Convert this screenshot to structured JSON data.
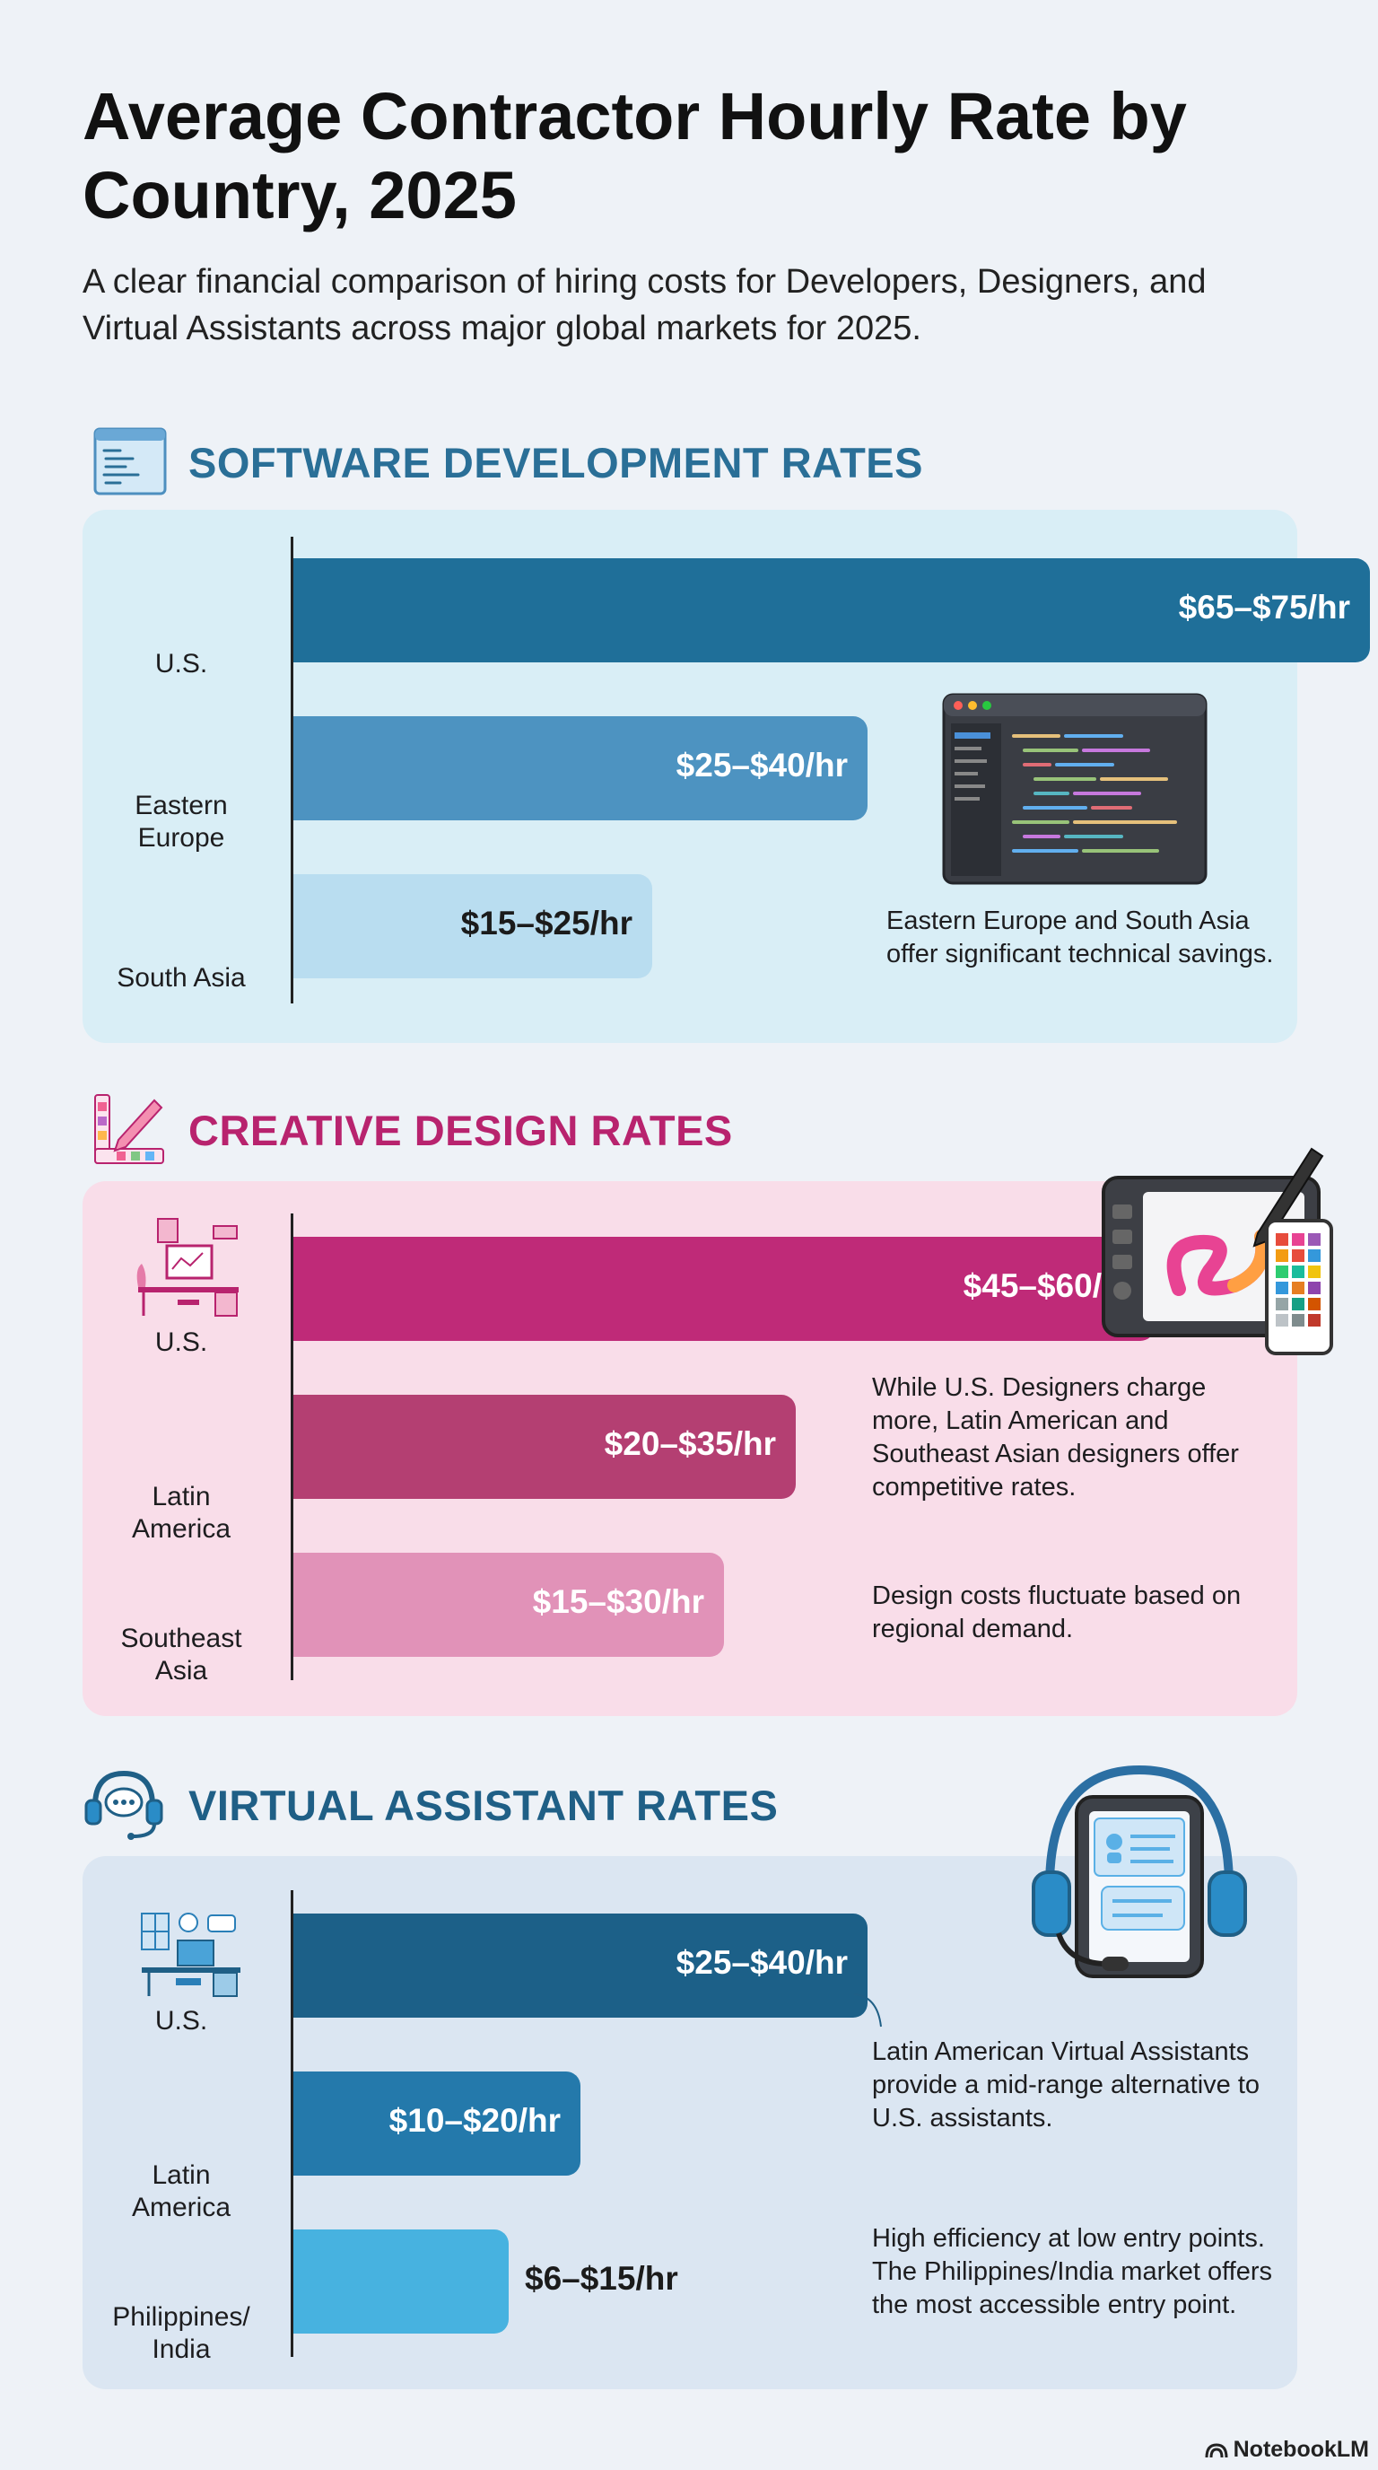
{
  "title": "Average Contractor Hourly Rate by Country, 2025",
  "subtitle": "A clear financial comparison of hiring costs for Developers, Designers, and Virtual Assistants across major global markets for 2025.",
  "brand": "NotebookLM",
  "icons": {
    "software": "code-window-icon",
    "design": "palette-pencil-icon",
    "va": "headset-chat-icon",
    "illustration_software": "code-editor-icon",
    "illustration_design": "drawing-tablet-icon",
    "illustration_va": "headset-tablet-icon"
  },
  "colors": {
    "software_title": "#2a6f97",
    "design_title": "#b8236e",
    "va_title": "#1f5f86"
  },
  "chart_data": [
    {
      "type": "bar",
      "title": "SOFTWARE DEVELOPMENT RATES",
      "orientation": "horizontal",
      "categories": [
        "U.S.",
        "Eastern Europe",
        "South Asia"
      ],
      "ranges": [
        [
          65,
          75
        ],
        [
          25,
          40
        ],
        [
          15,
          25
        ]
      ],
      "values": [
        75,
        40,
        25
      ],
      "value_labels": [
        "$65–$75/hr",
        "$25–$40/hr",
        "$15–$25/hr"
      ],
      "colors": [
        "#1f6f99",
        "#4d93c1",
        "#b9ddf0"
      ],
      "annotations": [
        "Eastern Europe and South Asia offer significant technical savings."
      ],
      "xlim": [
        0,
        80
      ]
    },
    {
      "type": "bar",
      "title": "CREATIVE DESIGN RATES",
      "orientation": "horizontal",
      "categories": [
        "U.S.",
        "Latin America",
        "Southeast Asia"
      ],
      "ranges": [
        [
          45,
          60
        ],
        [
          20,
          35
        ],
        [
          15,
          30
        ]
      ],
      "values": [
        60,
        35,
        30
      ],
      "value_labels": [
        "$45–$60/hr",
        "$20–$35/hr",
        "$15–$30/hr"
      ],
      "colors": [
        "#bf2a78",
        "#b43f72",
        "#e192b8"
      ],
      "annotations": [
        "While U.S. Designers charge more, Latin American and Southeast Asian designers offer competitive rates.",
        "Design costs fluctuate based on regional demand."
      ],
      "xlim": [
        0,
        80
      ]
    },
    {
      "type": "bar",
      "title": "VIRTUAL ASSISTANT RATES",
      "orientation": "horizontal",
      "categories": [
        "U.S.",
        "Latin America",
        "Philippines/ India"
      ],
      "ranges": [
        [
          25,
          40
        ],
        [
          10,
          20
        ],
        [
          6,
          15
        ]
      ],
      "values": [
        40,
        20,
        15
      ],
      "value_labels": [
        "$25–$40/hr",
        "$10–$20/hr",
        "$6–$15/hr"
      ],
      "colors": [
        "#1c6088",
        "#2479ab",
        "#47b2e0"
      ],
      "annotations": [
        "Latin American Virtual Assistants provide a mid-range alternative to U.S. assistants.",
        "High efficiency at low entry points. The Philippines/India market offers the most accessible entry point."
      ],
      "xlim": [
        0,
        80
      ]
    }
  ]
}
